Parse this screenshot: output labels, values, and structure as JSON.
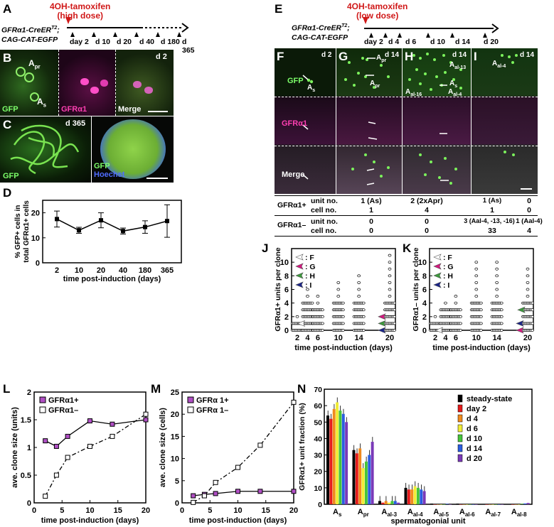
{
  "panels": {
    "A": {
      "letter": "A",
      "treatment": "4OH-tamoxifen",
      "dose": "(high dose)",
      "genotype1": "GFRα1-CreER",
      "genotype1_sup": "T2",
      "genotype1_tail": ";",
      "genotype2": "CAG-CAT-EGFP",
      "timepoints": [
        "day 2",
        "d 10",
        "d 20",
        "d 40",
        "d 180",
        "d 365"
      ]
    },
    "B": {
      "letter": "B",
      "day": "d 2",
      "apr": "A",
      "apr_sub": "pr",
      "as": "A",
      "as_sub": "s",
      "gfp": "GFP",
      "gfra": "GFRα1",
      "merge": "Merge"
    },
    "C": {
      "letter": "C",
      "day": "d 365",
      "gfp1": "GFP",
      "gfp2": "GFP",
      "hoechst": "Hoechst"
    },
    "D": {
      "letter": "D"
    },
    "E": {
      "letter": "E",
      "treatment": "4OH-tamoxifen",
      "dose": "(low dose)",
      "genotype1": "GFRα1-CreER",
      "genotype1_sup": "T2",
      "genotype1_tail": ";",
      "genotype2": "CAG-CAT-EGFP",
      "timepoints": [
        "day 2",
        "d 4",
        "d 6",
        "d 10",
        "d 14",
        "d 20"
      ]
    },
    "F": {
      "letter": "F",
      "day": "d 2",
      "cell": "A",
      "cell_sub": "s"
    },
    "G": {
      "letter": "G",
      "day": "d 14",
      "cell1": "A",
      "cell1_sub": "pr",
      "cell2": "A",
      "cell2_sub": "pr"
    },
    "H": {
      "letter": "H",
      "day": "d 14",
      "c1": "A",
      "c1_sub": "al-13",
      "c2": "A",
      "c2_sub": "s",
      "c3": "A",
      "c3_sub": "al-16",
      "c4": "A",
      "c4_sub": "al-4"
    },
    "I": {
      "letter": "I",
      "day": "d 14",
      "c1": "A",
      "c1_sub": "al-4"
    },
    "rows": {
      "gfp": "GFP",
      "gfra": "GFRα1",
      "merge": "Merge"
    },
    "table": {
      "r1_group": "GFRα1+",
      "r1_a": "unit no.",
      "r1_b": "cell no.",
      "r2_group": "GFRα1–",
      "r2_a": "unit no.",
      "r2_b": "cell no.",
      "F": {
        "u1": "1 (As)",
        "c1": "1",
        "u2": "0",
        "c2": "0"
      },
      "G": {
        "u1": "2 (2xApr)",
        "c1": "4",
        "u2": "0",
        "c2": "0"
      },
      "H": {
        "u1": "1 (As)",
        "c1": "1",
        "u2": "3 (Aal-4, -13, -16)",
        "c2": "33"
      },
      "I": {
        "u1": "0",
        "c1": "0",
        "u2": "1 (Aal-4)",
        "c2": "4"
      }
    },
    "J": {
      "letter": "J"
    },
    "K": {
      "letter": "K"
    },
    "L": {
      "letter": "L"
    },
    "M": {
      "letter": "M"
    },
    "N": {
      "letter": "N"
    }
  },
  "chart_data": [
    {
      "id": "D",
      "type": "line",
      "ylabel": "% GFP+ cells in total GFRα1+ cells",
      "xlabel": "time post-induction (days)",
      "categories": [
        "2",
        "10",
        "20",
        "40",
        "180",
        "365"
      ],
      "values": [
        17.5,
        13,
        17,
        12.7,
        14.3,
        16.7
      ],
      "errors": [
        3.2,
        1.2,
        3,
        1.2,
        2.5,
        6.5
      ],
      "ylim": [
        0,
        25
      ],
      "yticks": [
        0,
        10,
        20
      ]
    },
    {
      "id": "J",
      "type": "scatter",
      "ylabel": "GFRα1+ units per clone",
      "xlabel": "time post-induction (days)",
      "x_ticks": [
        2,
        4,
        6,
        10,
        14,
        20
      ],
      "ylim": [
        0,
        12
      ],
      "yticks": [
        0,
        2,
        4,
        6,
        8,
        10
      ],
      "legend": [
        {
          "label": ": F",
          "color": "#ffffff"
        },
        {
          "label": ": G",
          "color": "#d4177f"
        },
        {
          "label": ": H",
          "color": "#3c9a3c"
        },
        {
          "label": ": I",
          "color": "#1a2488"
        }
      ],
      "max_units": [
        2,
        6,
        5,
        7,
        8,
        11
      ]
    },
    {
      "id": "K",
      "type": "scatter",
      "ylabel": "GFRα1– units per clone",
      "xlabel": "time post-induction (days)",
      "x_ticks": [
        2,
        4,
        6,
        10,
        14,
        20
      ],
      "ylim": [
        0,
        12
      ],
      "yticks": [
        0,
        2,
        4,
        6,
        8,
        10
      ],
      "legend": [
        {
          "label": ": F",
          "color": "#ffffff"
        },
        {
          "label": ": G",
          "color": "#d4177f"
        },
        {
          "label": ": H",
          "color": "#3c9a3c"
        },
        {
          "label": ": I",
          "color": "#1a2488"
        }
      ],
      "max_units": [
        2,
        4,
        5,
        10,
        10,
        9
      ]
    },
    {
      "id": "L",
      "type": "line",
      "ylabel": "ave. clone size (units)",
      "xlabel": "time post-induction (days)",
      "xlim": [
        0,
        20
      ],
      "ylim": [
        0,
        2
      ],
      "yticks": [
        0,
        0.5,
        1,
        1.5,
        2
      ],
      "xticks": [
        0,
        5,
        10,
        15,
        20
      ],
      "series": [
        {
          "name": "GFRα1+",
          "x": [
            2,
            4,
            6,
            10,
            14,
            20
          ],
          "values": [
            1.12,
            1.02,
            1.2,
            1.48,
            1.42,
            1.5
          ]
        },
        {
          "name": "GFRα1–",
          "x": [
            2,
            4,
            6,
            10,
            14,
            20
          ],
          "values": [
            0.12,
            0.5,
            0.82,
            1.02,
            1.2,
            1.6
          ]
        }
      ]
    },
    {
      "id": "M",
      "type": "line",
      "ylabel": "ave. clone size (cells)",
      "xlabel": "time post-induction (days)",
      "xlim": [
        0,
        20
      ],
      "ylim": [
        0,
        25
      ],
      "yticks": [
        0,
        5,
        10,
        15,
        20,
        25
      ],
      "xticks": [
        0,
        5,
        10,
        15,
        20
      ],
      "series": [
        {
          "name": "GFRα 1+",
          "x": [
            2,
            4,
            6,
            10,
            14,
            20
          ],
          "values": [
            1.6,
            1.9,
            2.1,
            2.6,
            2.6,
            2.6
          ]
        },
        {
          "name": "GFRα 1–",
          "x": [
            2,
            4,
            6,
            10,
            14,
            20
          ],
          "values": [
            0.1,
            1.6,
            4.6,
            8,
            13,
            22.7
          ]
        }
      ]
    },
    {
      "id": "N",
      "type": "bar",
      "ylabel": "GFRα1+ unit fraction (%)",
      "xlabel": "spermatogonial unit",
      "ylim": [
        0,
        70
      ],
      "yticks": [
        0,
        10,
        20,
        30,
        40,
        50,
        60,
        70
      ],
      "categories": [
        {
          "m": "A",
          "s": "s"
        },
        {
          "m": "A",
          "s": "pr"
        },
        {
          "m": "A",
          "s": "al-3"
        },
        {
          "m": "A",
          "s": "al-4"
        },
        {
          "m": "A",
          "s": "al-5"
        },
        {
          "m": "A",
          "s": "al-6"
        },
        {
          "m": "A",
          "s": "al-7"
        },
        {
          "m": "A",
          "s": "al-8"
        }
      ],
      "series": [
        {
          "name": "steady-state",
          "color": "#000000",
          "values": [
            54,
            33,
            2,
            10,
            0.4,
            0.4,
            0.2,
            0.2
          ]
        },
        {
          "name": "day 2",
          "color": "#e41b1b",
          "values": [
            52,
            31,
            1,
            9,
            0,
            0,
            0,
            0
          ]
        },
        {
          "name": "d 4",
          "color": "#f08a1d",
          "values": [
            58,
            34,
            2,
            9,
            0,
            0,
            0,
            0
          ]
        },
        {
          "name": "d 6",
          "color": "#f0ec36",
          "values": [
            62,
            22,
            1,
            11,
            0,
            0,
            0,
            0
          ]
        },
        {
          "name": "d 10",
          "color": "#45c43a",
          "values": [
            57,
            26,
            2,
            10,
            0,
            0,
            0,
            0.3
          ]
        },
        {
          "name": "d 14",
          "color": "#2a5de0",
          "values": [
            55,
            30,
            2,
            9,
            0.3,
            0,
            0,
            0.5
          ]
        },
        {
          "name": "d 20",
          "color": "#7a39b8",
          "values": [
            50,
            38,
            1,
            8,
            0,
            0,
            0,
            0.8
          ]
        }
      ]
    }
  ]
}
